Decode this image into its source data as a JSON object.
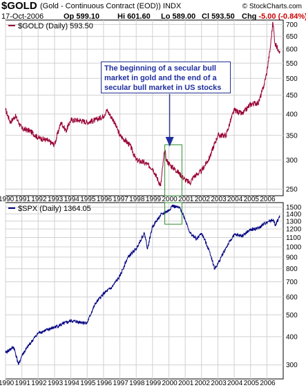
{
  "header": {
    "symbol": "$GOLD",
    "description": "(Gold - Continuous Contract (EOD))",
    "exchange": "INDX",
    "date": "17-Oct-2006",
    "open_label": "Op",
    "open": "599.10",
    "high_label": "Hi",
    "high": "601.60",
    "low_label": "Lo",
    "low": "589.00",
    "close_label": "Cl",
    "close": "593.50",
    "chg_label": "Chg",
    "chg": "-5.00 (-0.84%)",
    "chg_icon": "down-triangle-icon",
    "copyright": "© StockCharts.com"
  },
  "annotation": {
    "text": "The beginning of a secular bull market in gold and the end of a secular bull market in US stocks",
    "color": "#1f2fa0"
  },
  "chart_data": [
    {
      "type": "line",
      "legend": "$GOLD (Daily) 593.50",
      "color": "#990033",
      "x": [
        1990.0,
        1990.3,
        1990.6,
        1991.0,
        1991.5,
        1992.0,
        1992.5,
        1993.0,
        1993.4,
        1993.7,
        1994.0,
        1994.5,
        1995.0,
        1995.5,
        1996.0,
        1996.2,
        1996.6,
        1997.0,
        1997.3,
        1997.6,
        1998.0,
        1998.5,
        1999.0,
        1999.5,
        1999.75,
        1999.85,
        2000.1,
        2000.5,
        2001.0,
        2001.3,
        2001.5,
        2002.0,
        2002.5,
        2003.0,
        2003.5,
        2004.0,
        2004.5,
        2005.0,
        2005.5,
        2005.8,
        2006.0,
        2006.2,
        2006.37,
        2006.5,
        2006.7,
        2006.8
      ],
      "y": [
        410,
        380,
        395,
        365,
        360,
        345,
        340,
        330,
        380,
        360,
        385,
        385,
        380,
        385,
        395,
        410,
        385,
        350,
        340,
        330,
        300,
        295,
        285,
        255,
        320,
        300,
        290,
        280,
        265,
        260,
        270,
        280,
        305,
        350,
        350,
        410,
        400,
        425,
        430,
        475,
        520,
        600,
        710,
        620,
        600,
        593.5
      ],
      "xlim": [
        1990,
        2007
      ],
      "ylim": [
        240,
        720
      ],
      "y_ticks": [
        250,
        300,
        350,
        400,
        450,
        500,
        550,
        600,
        650,
        700
      ],
      "x_ticks": [
        "1990",
        "1991",
        "1992",
        "1993",
        "1994",
        "1995",
        "1996",
        "1997",
        "1998",
        "1999",
        "2000",
        "2001",
        "2002",
        "2003",
        "2004",
        "2005",
        "2006"
      ],
      "grid": true,
      "legend_position": "top-left"
    },
    {
      "type": "line",
      "legend": "$SPX (Daily) 1364.05",
      "color": "#000080",
      "x": [
        1990.0,
        1990.5,
        1990.8,
        1991.0,
        1992.0,
        1993.0,
        1994.0,
        1995.0,
        1995.5,
        1996.0,
        1996.5,
        1997.0,
        1997.5,
        1998.0,
        1998.5,
        1998.7,
        1999.0,
        1999.5,
        2000.0,
        2000.2,
        2000.7,
        2001.0,
        2001.3,
        2001.7,
        2002.0,
        2002.5,
        2002.8,
        2003.0,
        2003.5,
        2004.0,
        2004.5,
        2005.0,
        2005.5,
        2006.0,
        2006.4,
        2006.5,
        2006.8
      ],
      "y": [
        340,
        360,
        300,
        330,
        415,
        440,
        470,
        460,
        560,
        620,
        660,
        740,
        900,
        980,
        1150,
        980,
        1230,
        1380,
        1450,
        1520,
        1480,
        1320,
        1150,
        1080,
        1150,
        950,
        800,
        840,
        990,
        1130,
        1120,
        1190,
        1210,
        1290,
        1320,
        1240,
        1364
      ],
      "xlim": [
        1990,
        2007
      ],
      "ylim": [
        260,
        1570
      ],
      "y_ticks": [
        300,
        400,
        500,
        600,
        700,
        800,
        900,
        1000,
        1100,
        1200,
        1300,
        1400,
        1500
      ],
      "x_ticks": [
        "1990",
        "1991",
        "1992",
        "1993",
        "1994",
        "1995",
        "1996",
        "1997",
        "1998",
        "1999",
        "2000",
        "2001",
        "2002",
        "2003",
        "2004",
        "2005",
        "2006"
      ],
      "grid": true,
      "legend_position": "top-left"
    }
  ]
}
